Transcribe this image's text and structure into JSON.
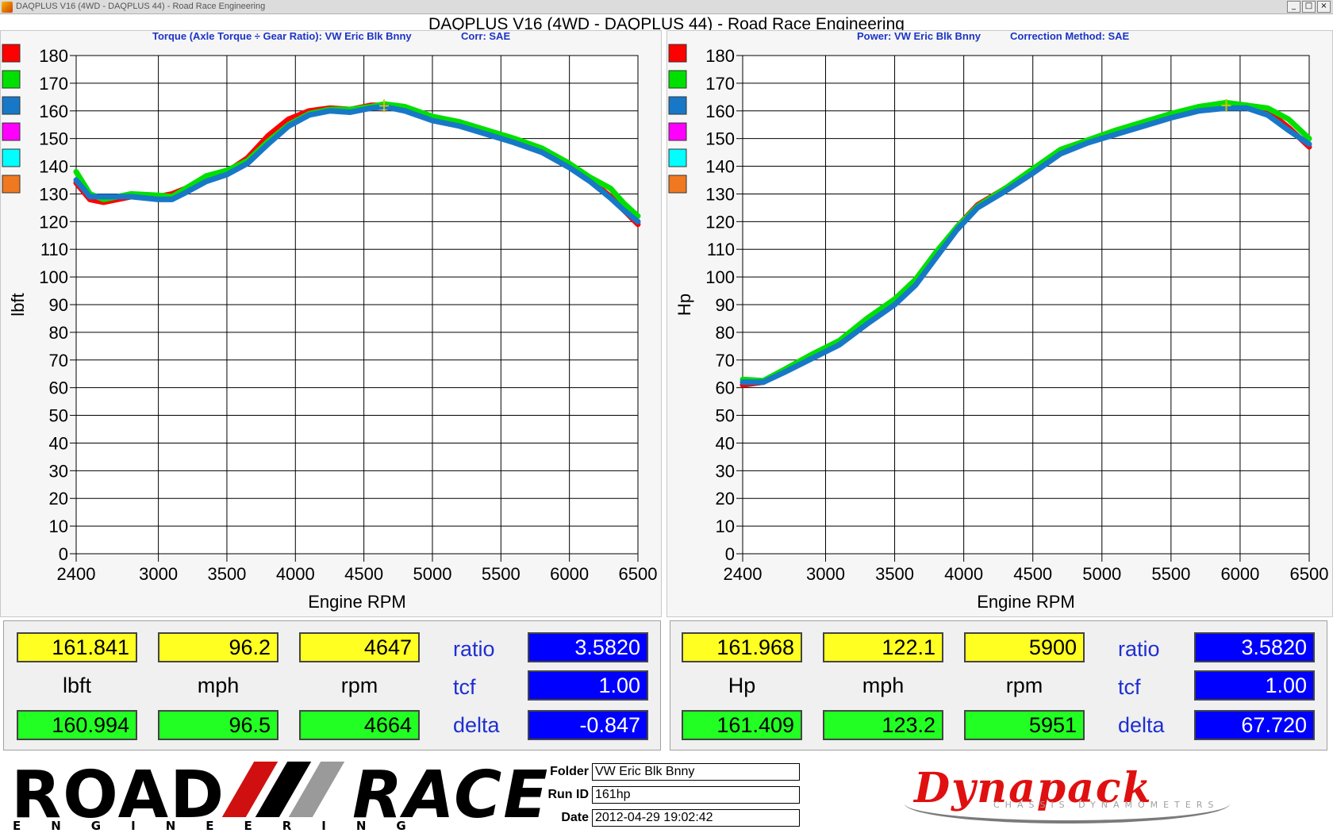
{
  "window": {
    "title": "DAQPLUS V16 (4WD - DAQPLUS 44) - Road Race Engineering",
    "buttons": [
      "_",
      "□",
      "×"
    ]
  },
  "main_title": "DAQPLUS V16 (4WD - DAQPLUS 44) - Road Race Engineering",
  "charts": {
    "torque": {
      "subtitle_left": "Torque (Axle Torque ÷ Gear Ratio): VW Eric Blk Bnny",
      "subtitle_right": "Corr: SAE"
    },
    "power": {
      "subtitle_left": "Power: VW Eric Blk Bnny",
      "subtitle_right": "Correction Method: SAE"
    }
  },
  "legend_colors": [
    "#ff0000",
    "#00e000",
    "#1878c8",
    "#ff00ff",
    "#00ffff",
    "#f07820"
  ],
  "chart_data": [
    {
      "type": "line",
      "xlabel": "Engine RPM",
      "ylabel": "lbft",
      "xlim": [
        2400,
        6500
      ],
      "ylim": [
        0,
        180
      ],
      "xticks": [
        "2400",
        "3000",
        "3500",
        "4000",
        "4500",
        "5000",
        "5500",
        "6000",
        "6500"
      ],
      "xtick_values": [
        2400,
        3000,
        3500,
        4000,
        4500,
        5000,
        5500,
        6000,
        6500
      ],
      "yticks": [
        "180",
        "170",
        "160",
        "150",
        "140",
        "130",
        "120",
        "110",
        "100",
        "90",
        "80",
        "70",
        "60",
        "50",
        "40",
        "30",
        "20",
        "10",
        "0"
      ],
      "ytick_values": [
        180,
        170,
        160,
        150,
        140,
        130,
        120,
        110,
        100,
        90,
        80,
        70,
        60,
        50,
        40,
        30,
        20,
        10,
        0
      ],
      "grid": true,
      "legend": "left",
      "series": [
        {
          "color": "#ff0000",
          "x": [
            2400,
            2500,
            2600,
            2800,
            3000,
            3100,
            3200,
            3350,
            3500,
            3650,
            3800,
            3950,
            4100,
            4250,
            4400,
            4550,
            4650,
            4800,
            5000,
            5200,
            5400,
            5600,
            5800,
            6000,
            6150,
            6300,
            6400,
            6500
          ],
          "values": [
            134,
            128,
            127,
            129,
            129,
            130,
            132,
            136,
            138,
            143,
            151,
            157,
            160,
            161,
            160.5,
            162,
            162,
            160.5,
            157,
            155,
            152,
            149,
            145.5,
            140,
            135,
            129,
            124,
            119
          ]
        },
        {
          "color": "#00e000",
          "x": [
            2400,
            2500,
            2600,
            2800,
            3000,
            3100,
            3200,
            3350,
            3500,
            3650,
            3800,
            3950,
            4100,
            4250,
            4400,
            4550,
            4650,
            4800,
            5000,
            5200,
            5400,
            5600,
            5800,
            6000,
            6150,
            6300,
            6400,
            6500
          ],
          "values": [
            138,
            130,
            128,
            130,
            129.5,
            129,
            132,
            136.5,
            138.5,
            142,
            149,
            155,
            159,
            160.5,
            160.5,
            161.5,
            162.5,
            161.5,
            158,
            156,
            153,
            150,
            146.5,
            141,
            136,
            132,
            126.5,
            122
          ]
        },
        {
          "color": "#1878c8",
          "x": [
            2400,
            2500,
            2600,
            2800,
            3000,
            3100,
            3200,
            3350,
            3500,
            3650,
            3800,
            3950,
            4100,
            4250,
            4400,
            4550,
            4650,
            4800,
            5000,
            5200,
            5400,
            5600,
            5800,
            6000,
            6150,
            6300,
            6400,
            6500
          ],
          "values": [
            135,
            129,
            129,
            129,
            128,
            128,
            130.5,
            134.5,
            137,
            141,
            148,
            154.5,
            158.5,
            160,
            159.5,
            161,
            161.5,
            160,
            156.5,
            154.5,
            151.5,
            148.5,
            145,
            139.5,
            134.5,
            128.5,
            124,
            120
          ]
        }
      ]
    },
    {
      "type": "line",
      "xlabel": "Engine RPM",
      "ylabel": "Hp",
      "xlim": [
        2400,
        6500
      ],
      "ylim": [
        0,
        180
      ],
      "xticks": [
        "2400",
        "3000",
        "3500",
        "4000",
        "4500",
        "5000",
        "5500",
        "6000",
        "6500"
      ],
      "xtick_values": [
        2400,
        3000,
        3500,
        4000,
        4500,
        5000,
        5500,
        6000,
        6500
      ],
      "yticks": [
        "180",
        "170",
        "160",
        "150",
        "140",
        "130",
        "120",
        "110",
        "100",
        "90",
        "80",
        "70",
        "60",
        "50",
        "40",
        "30",
        "20",
        "10",
        "0"
      ],
      "ytick_values": [
        180,
        170,
        160,
        150,
        140,
        130,
        120,
        110,
        100,
        90,
        80,
        70,
        60,
        50,
        40,
        30,
        20,
        10,
        0
      ],
      "grid": true,
      "legend": "left",
      "series": [
        {
          "color": "#ff0000",
          "x": [
            2400,
            2550,
            2700,
            2900,
            3100,
            3300,
            3500,
            3650,
            3800,
            3950,
            4100,
            4300,
            4500,
            4700,
            4900,
            5100,
            5300,
            5500,
            5700,
            5900,
            6050,
            6200,
            6350,
            6500
          ],
          "values": [
            61,
            62,
            66,
            71,
            76,
            84,
            91,
            98,
            108,
            118,
            126,
            132,
            138,
            145,
            149,
            152,
            155,
            158,
            160.5,
            162,
            162,
            160,
            154,
            147
          ]
        },
        {
          "color": "#00e000",
          "x": [
            2400,
            2550,
            2700,
            2900,
            3100,
            3300,
            3500,
            3650,
            3800,
            3950,
            4100,
            4300,
            4500,
            4700,
            4900,
            5100,
            5300,
            5500,
            5700,
            5900,
            6050,
            6200,
            6350,
            6500
          ],
          "values": [
            63,
            62.5,
            66.5,
            72,
            77,
            85,
            92,
            99,
            109,
            118,
            125.5,
            132,
            139,
            146,
            149.5,
            153,
            156,
            159,
            161.5,
            163,
            162,
            161,
            157,
            150
          ]
        },
        {
          "color": "#1878c8",
          "x": [
            2400,
            2550,
            2700,
            2900,
            3100,
            3300,
            3500,
            3650,
            3800,
            3950,
            4100,
            4300,
            4500,
            4700,
            4900,
            5100,
            5300,
            5500,
            5700,
            5900,
            6050,
            6200,
            6350,
            6500
          ],
          "values": [
            62,
            62,
            65.5,
            70.5,
            75.5,
            83,
            90,
            97,
            107,
            117,
            125,
            131,
            137.5,
            144.5,
            148.5,
            151.5,
            154.5,
            157.5,
            160,
            161,
            161,
            158.5,
            153,
            148
          ]
        }
      ]
    }
  ],
  "readouts": [
    {
      "cursor": {
        "value": "161.841",
        "mph": "96.2",
        "rpm": "4647"
      },
      "peak": {
        "value": "160.994",
        "mph": "96.5",
        "rpm": "4664"
      },
      "unit_value": "lbft",
      "unit_mph": "mph",
      "unit_rpm": "rpm",
      "ratio_label": "ratio",
      "ratio": "3.5820",
      "tcf_label": "tcf",
      "tcf": "1.00",
      "delta_label": "delta",
      "delta": "-0.847"
    },
    {
      "cursor": {
        "value": "161.968",
        "mph": "122.1",
        "rpm": "5900"
      },
      "peak": {
        "value": "161.409",
        "mph": "123.2",
        "rpm": "5951"
      },
      "unit_value": "Hp",
      "unit_mph": "mph",
      "unit_rpm": "rpm",
      "ratio_label": "ratio",
      "ratio": "3.5820",
      "tcf_label": "tcf",
      "tcf": "1.00",
      "delta_label": "delta",
      "delta": "67.720"
    }
  ],
  "footer": {
    "logo_road": "ROAD",
    "logo_race": "RACE",
    "logo_engineering": "ENGINEERING",
    "folder_label": "Folder",
    "folder": "VW Eric Blk Bnny",
    "runid_label": "Run ID",
    "runid": "161hp",
    "date_label": "Date",
    "date": "2012-04-29 19:02:42",
    "dynapack": "Dynapack",
    "dynapack_sub": "CHASSIS DYNAMOMETERS"
  }
}
